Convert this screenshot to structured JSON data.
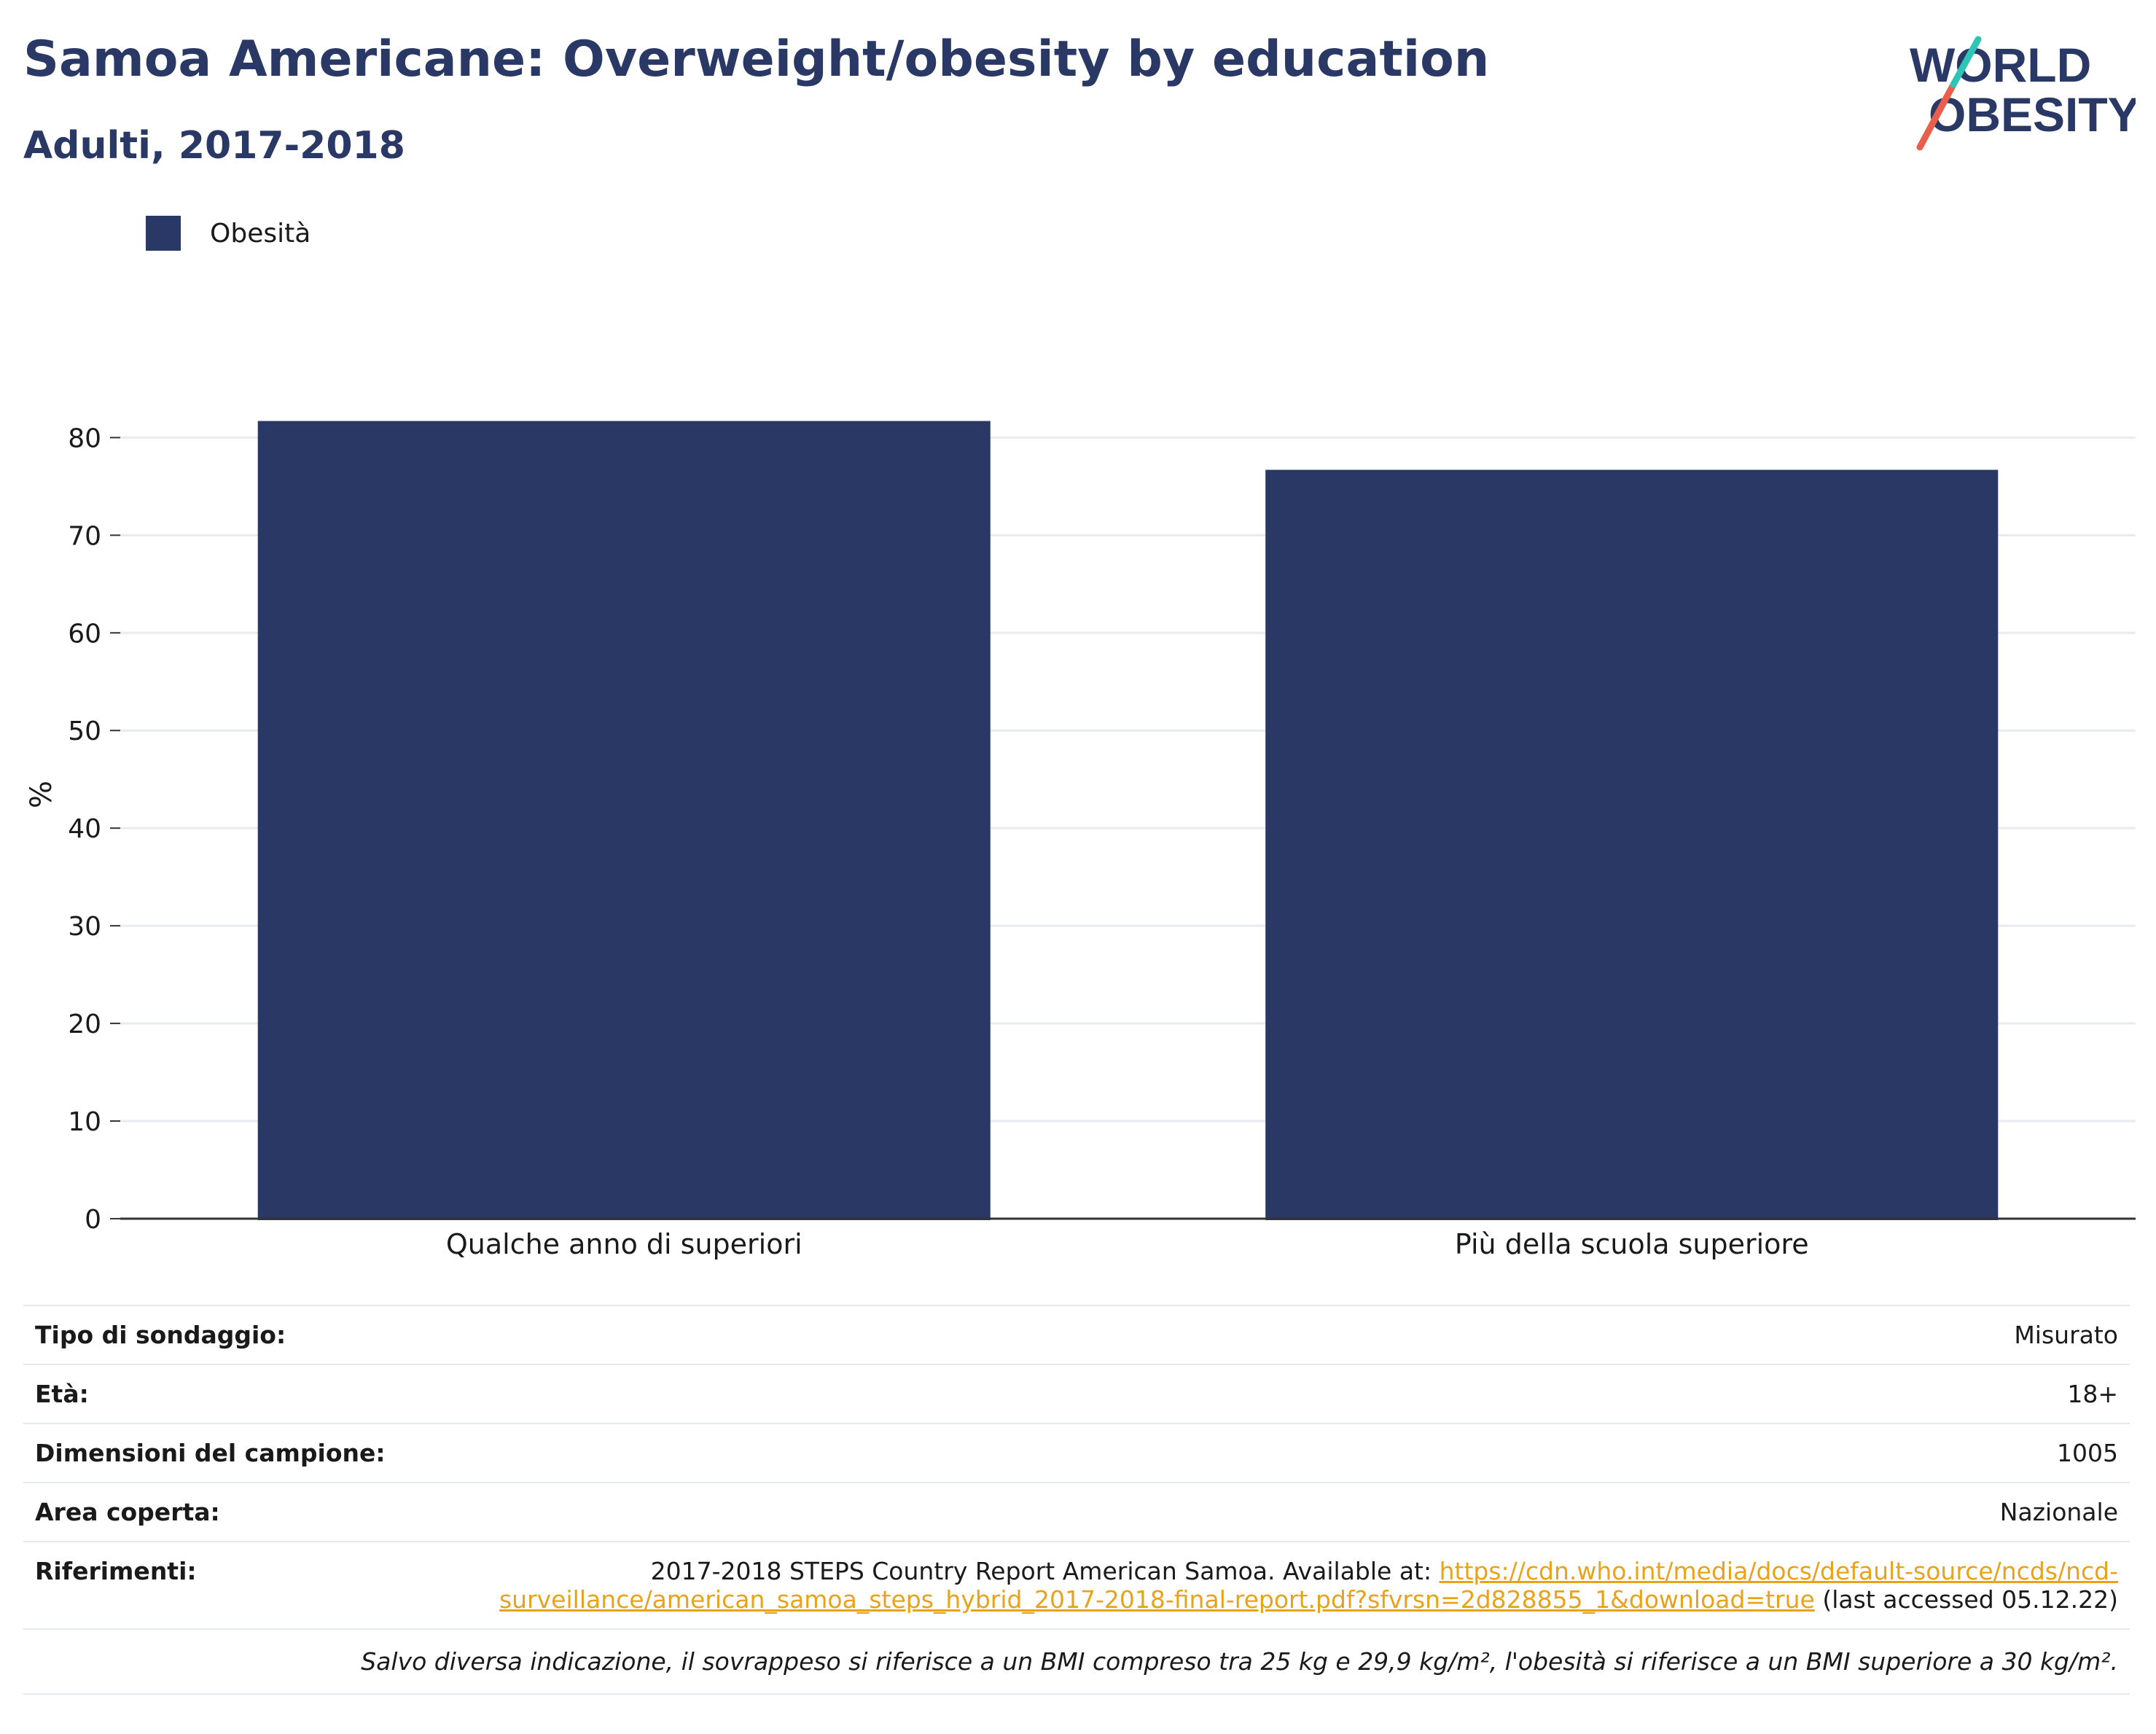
{
  "header": {
    "title": "Samoa Americane: Overweight/obesity by education",
    "subtitle": "Adulti, 2017-2018"
  },
  "logo": {
    "line1": "WORLD",
    "line2": "OBESITY"
  },
  "colors": {
    "bar": "#2a3865",
    "accent_teal": "#2ec4b6",
    "accent_coral": "#e8604c",
    "title": "#2a3865",
    "link": "#e8a31a"
  },
  "chart_data": {
    "type": "bar",
    "categories": [
      "Qualche anno di superiori",
      "Più della scuola superiore"
    ],
    "series": [
      {
        "name": "Obesità",
        "values": [
          81.7,
          76.7
        ]
      }
    ],
    "ylabel": "%",
    "yticks": [
      "0",
      "10",
      "20",
      "30",
      "40",
      "50",
      "60",
      "70",
      "80"
    ],
    "ylim": [
      0,
      86
    ],
    "grid": true,
    "legend": "top-left"
  },
  "details": {
    "rows": [
      {
        "label": "Tipo di sondaggio:",
        "value": "Misurato"
      },
      {
        "label": "Età:",
        "value": "18+"
      },
      {
        "label": "Dimensioni del campione:",
        "value": "1005"
      },
      {
        "label": "Area coperta:",
        "value": "Nazionale"
      }
    ],
    "references": {
      "label": "Riferimenti:",
      "prefix": "2017-2018 STEPS Country Report American Samoa. Available at: ",
      "url": "https://cdn.who.int/media/docs/default-source/ncds/ncd-surveillance/american_samoa_steps_hybrid_2017-2018-final-report.pdf?sfvrsn=2d828855_1&download=true",
      "suffix": " (last accessed 05.12.22)"
    },
    "note": "Salvo diversa indicazione, il sovrappeso si riferisce a un BMI compreso tra 25 kg e 29,9 kg/m², l'obesità si riferisce a un BMI superiore a 30 kg/m²."
  }
}
